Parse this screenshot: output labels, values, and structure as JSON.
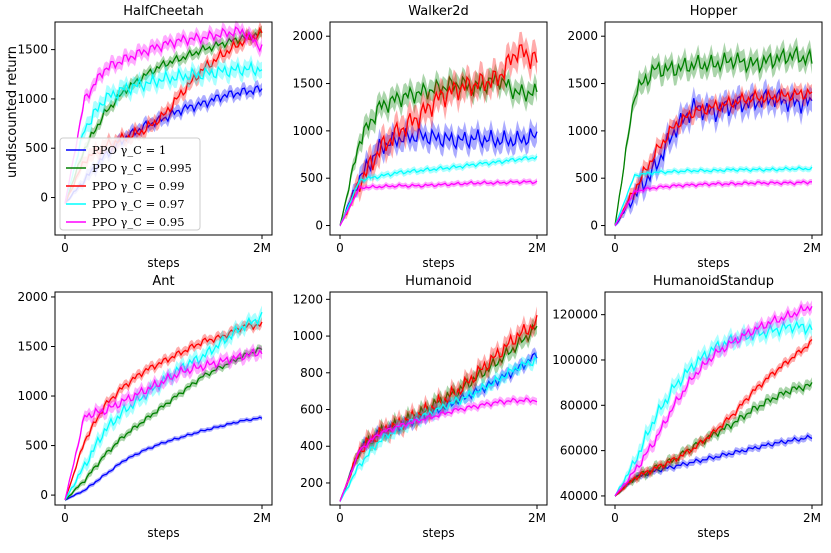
{
  "figure": {
    "ylabel": "undiscounted return"
  },
  "legend": {
    "entries": [
      {
        "label": "PPO γ_C = 1",
        "color": "#0000ff"
      },
      {
        "label": "PPO γ_C = 0.995",
        "color": "#008000"
      },
      {
        "label": "PPO γ_C = 0.99",
        "color": "#ff0000"
      },
      {
        "label": "PPO γ_C = 0.97",
        "color": "#00ffff"
      },
      {
        "label": "PPO γ_C = 0.95",
        "color": "#ff00ff"
      }
    ]
  },
  "chart_data": [
    {
      "type": "line",
      "title": "HalfCheetah",
      "xlabel": "steps",
      "x": [
        0,
        0.1,
        0.2,
        0.3,
        0.4,
        0.5,
        0.6,
        0.7,
        0.8,
        0.9,
        1.0
      ],
      "xticks": [
        {
          "v": 0,
          "label": "0"
        },
        {
          "v": 1,
          "label": "2M"
        }
      ],
      "ylim": [
        -380,
        1780
      ],
      "yticks": [
        {
          "v": 0,
          "label": "0"
        },
        {
          "v": 500,
          "label": "500"
        },
        {
          "v": 1000,
          "label": "1000"
        },
        {
          "v": 1500,
          "label": "1500"
        }
      ],
      "series": [
        {
          "name": "PPO γ_C = 1",
          "color": "#0000ff",
          "noise": 35,
          "values": [
            -60,
            180,
            420,
            600,
            720,
            800,
            900,
            950,
            1030,
            1070,
            1100
          ]
        },
        {
          "name": "PPO γ_C = 0.995",
          "color": "#008000",
          "noise": 30,
          "values": [
            -60,
            500,
            850,
            1080,
            1230,
            1350,
            1420,
            1500,
            1560,
            1620,
            1660
          ]
        },
        {
          "name": "PPO γ_C = 0.99",
          "color": "#ff0000",
          "noise": 40,
          "values": [
            -60,
            380,
            520,
            600,
            680,
            830,
            1080,
            1300,
            1450,
            1580,
            1670
          ]
        },
        {
          "name": "PPO γ_C = 0.97",
          "color": "#00ffff",
          "noise": 50,
          "values": [
            -60,
            700,
            1000,
            1100,
            1150,
            1200,
            1230,
            1250,
            1280,
            1300,
            1300
          ]
        },
        {
          "name": "PPO γ_C = 0.95",
          "color": "#ff00ff",
          "noise": 40,
          "values": [
            -60,
            1000,
            1300,
            1400,
            1480,
            1550,
            1600,
            1620,
            1660,
            1690,
            1520
          ]
        }
      ]
    },
    {
      "type": "line",
      "title": "Walker2d",
      "xlabel": "steps",
      "x": [
        0,
        0.1,
        0.2,
        0.3,
        0.4,
        0.5,
        0.6,
        0.7,
        0.8,
        0.9,
        1.0
      ],
      "xticks": [
        {
          "v": 0,
          "label": "0"
        },
        {
          "v": 1,
          "label": "2M"
        }
      ],
      "ylim": [
        -100,
        2150
      ],
      "yticks": [
        {
          "v": 0,
          "label": "0"
        },
        {
          "v": 500,
          "label": "500"
        },
        {
          "v": 1000,
          "label": "1000"
        },
        {
          "v": 1500,
          "label": "1500"
        },
        {
          "v": 2000,
          "label": "2000"
        }
      ],
      "series": [
        {
          "name": "PPO γ_C = 1",
          "color": "#0000ff",
          "noise": 70,
          "values": [
            0,
            500,
            820,
            920,
            950,
            920,
            900,
            920,
            900,
            900,
            950
          ]
        },
        {
          "name": "PPO γ_C = 0.995",
          "color": "#008000",
          "noise": 70,
          "values": [
            0,
            900,
            1250,
            1350,
            1400,
            1450,
            1500,
            1450,
            1550,
            1400,
            1400
          ]
        },
        {
          "name": "PPO γ_C = 0.99",
          "color": "#ff0000",
          "noise": 90,
          "values": [
            0,
            450,
            800,
            1000,
            1150,
            1350,
            1450,
            1500,
            1550,
            1850,
            1750
          ]
        },
        {
          "name": "PPO γ_C = 0.97",
          "color": "#00ffff",
          "noise": 15,
          "values": [
            0,
            480,
            520,
            560,
            580,
            600,
            620,
            650,
            670,
            700,
            720
          ]
        },
        {
          "name": "PPO γ_C = 0.95",
          "color": "#ff00ff",
          "noise": 12,
          "values": [
            0,
            400,
            410,
            420,
            420,
            430,
            440,
            450,
            450,
            460,
            460
          ]
        }
      ]
    },
    {
      "type": "line",
      "title": "Hopper",
      "xlabel": "steps",
      "x": [
        0,
        0.1,
        0.2,
        0.3,
        0.4,
        0.5,
        0.6,
        0.7,
        0.8,
        0.9,
        1.0
      ],
      "xticks": [
        {
          "v": 0,
          "label": "0"
        },
        {
          "v": 1,
          "label": "2M"
        }
      ],
      "ylim": [
        -100,
        2150
      ],
      "yticks": [
        {
          "v": 0,
          "label": "0"
        },
        {
          "v": 500,
          "label": "500"
        },
        {
          "v": 1000,
          "label": "1000"
        },
        {
          "v": 1500,
          "label": "1500"
        },
        {
          "v": 2000,
          "label": "2000"
        }
      ],
      "series": [
        {
          "name": "PPO γ_C = 1",
          "color": "#0000ff",
          "noise": 80,
          "values": [
            0,
            320,
            600,
            1000,
            1250,
            1200,
            1280,
            1300,
            1350,
            1300,
            1300
          ]
        },
        {
          "name": "PPO γ_C = 0.995",
          "color": "#008000",
          "noise": 70,
          "values": [
            0,
            1400,
            1650,
            1650,
            1700,
            1700,
            1750,
            1700,
            1750,
            1800,
            1750
          ]
        },
        {
          "name": "PPO γ_C = 0.99",
          "color": "#ff0000",
          "noise": 50,
          "values": [
            0,
            380,
            750,
            1050,
            1200,
            1250,
            1300,
            1350,
            1350,
            1380,
            1400
          ]
        },
        {
          "name": "PPO γ_C = 0.97",
          "color": "#00ffff",
          "noise": 12,
          "values": [
            0,
            530,
            560,
            570,
            580,
            580,
            590,
            590,
            590,
            600,
            600
          ]
        },
        {
          "name": "PPO γ_C = 0.95",
          "color": "#ff00ff",
          "noise": 12,
          "values": [
            0,
            360,
            400,
            420,
            430,
            440,
            440,
            450,
            450,
            450,
            460
          ]
        }
      ]
    },
    {
      "type": "line",
      "title": "Ant",
      "xlabel": "steps",
      "x": [
        0,
        0.1,
        0.2,
        0.3,
        0.4,
        0.5,
        0.6,
        0.7,
        0.8,
        0.9,
        1.0
      ],
      "xticks": [
        {
          "v": 0,
          "label": "0"
        },
        {
          "v": 1,
          "label": "2M"
        }
      ],
      "ylim": [
        -100,
        2050
      ],
      "yticks": [
        {
          "v": 0,
          "label": "0"
        },
        {
          "v": 500,
          "label": "500"
        },
        {
          "v": 1000,
          "label": "1000"
        },
        {
          "v": 1500,
          "label": "1500"
        },
        {
          "v": 2000,
          "label": "2000"
        }
      ],
      "series": [
        {
          "name": "PPO γ_C = 1",
          "color": "#0000ff",
          "noise": 8,
          "values": [
            -50,
            50,
            200,
            350,
            450,
            530,
            590,
            650,
            700,
            750,
            780
          ]
        },
        {
          "name": "PPO γ_C = 0.995",
          "color": "#008000",
          "noise": 18,
          "values": [
            -50,
            150,
            400,
            600,
            750,
            900,
            1050,
            1200,
            1300,
            1400,
            1480
          ]
        },
        {
          "name": "PPO γ_C = 0.99",
          "color": "#ff0000",
          "noise": 25,
          "values": [
            -50,
            550,
            900,
            1100,
            1250,
            1350,
            1450,
            1550,
            1600,
            1700,
            1720
          ]
        },
        {
          "name": "PPO γ_C = 0.97",
          "color": "#00ffff",
          "noise": 40,
          "values": [
            -50,
            300,
            650,
            850,
            1000,
            1150,
            1300,
            1400,
            1550,
            1700,
            1800
          ]
        },
        {
          "name": "PPO γ_C = 0.95",
          "color": "#ff00ff",
          "noise": 35,
          "values": [
            -50,
            800,
            850,
            950,
            1050,
            1150,
            1250,
            1300,
            1350,
            1400,
            1450
          ]
        }
      ]
    },
    {
      "type": "line",
      "title": "Humanoid",
      "xlabel": "steps",
      "x": [
        0,
        0.1,
        0.2,
        0.3,
        0.4,
        0.5,
        0.6,
        0.7,
        0.8,
        0.9,
        1.0
      ],
      "xticks": [
        {
          "v": 0,
          "label": "0"
        },
        {
          "v": 1,
          "label": "2M"
        }
      ],
      "ylim": [
        80,
        1240
      ],
      "yticks": [
        {
          "v": 200,
          "label": "200"
        },
        {
          "v": 400,
          "label": "400"
        },
        {
          "v": 600,
          "label": "600"
        },
        {
          "v": 800,
          "label": "800"
        },
        {
          "v": 1000,
          "label": "1000"
        },
        {
          "v": 1200,
          "label": "1200"
        }
      ],
      "series": [
        {
          "name": "PPO γ_C = 1",
          "color": "#0000ff",
          "noise": 18,
          "values": [
            100,
            380,
            470,
            510,
            550,
            600,
            650,
            700,
            760,
            820,
            900
          ]
        },
        {
          "name": "PPO γ_C = 0.995",
          "color": "#008000",
          "noise": 25,
          "values": [
            100,
            380,
            470,
            520,
            570,
            640,
            700,
            780,
            860,
            950,
            1050
          ]
        },
        {
          "name": "PPO γ_C = 0.99",
          "color": "#ff0000",
          "noise": 30,
          "values": [
            100,
            380,
            470,
            520,
            570,
            630,
            700,
            800,
            900,
            1000,
            1070
          ]
        },
        {
          "name": "PPO γ_C = 0.97",
          "color": "#00ffff",
          "noise": 18,
          "values": [
            100,
            300,
            430,
            500,
            550,
            600,
            650,
            700,
            760,
            830,
            870
          ]
        },
        {
          "name": "PPO γ_C = 0.95",
          "color": "#ff00ff",
          "noise": 10,
          "values": [
            100,
            380,
            470,
            510,
            540,
            570,
            600,
            620,
            640,
            650,
            650
          ]
        }
      ]
    },
    {
      "type": "line",
      "title": "HumanoidStandup",
      "xlabel": "steps",
      "x": [
        0,
        0.1,
        0.2,
        0.3,
        0.4,
        0.5,
        0.6,
        0.7,
        0.8,
        0.9,
        1.0
      ],
      "xticks": [
        {
          "v": 0,
          "label": "0"
        },
        {
          "v": 1,
          "label": "2M"
        }
      ],
      "ylim": [
        36000,
        130000
      ],
      "yticks": [
        {
          "v": 40000,
          "label": "40000"
        },
        {
          "v": 60000,
          "label": "60000"
        },
        {
          "v": 80000,
          "label": "80000"
        },
        {
          "v": 100000,
          "label": "100000"
        },
        {
          "v": 120000,
          "label": "120000"
        }
      ],
      "series": [
        {
          "name": "PPO γ_C = 1",
          "color": "#0000ff",
          "noise": 700,
          "values": [
            40000,
            48000,
            51000,
            53000,
            55000,
            57000,
            59000,
            61000,
            63000,
            64500,
            66000
          ]
        },
        {
          "name": "PPO γ_C = 0.995",
          "color": "#008000",
          "noise": 1200,
          "values": [
            40000,
            48000,
            52000,
            56000,
            62000,
            67000,
            72000,
            78000,
            83000,
            87000,
            89000
          ]
        },
        {
          "name": "PPO γ_C = 0.99",
          "color": "#ff0000",
          "noise": 1000,
          "values": [
            40000,
            48000,
            52000,
            56000,
            61000,
            68000,
            76000,
            86000,
            94000,
            101000,
            108000
          ]
        },
        {
          "name": "PPO γ_C = 0.97",
          "color": "#00ffff",
          "noise": 2000,
          "values": [
            40000,
            55000,
            74000,
            88000,
            98000,
            105000,
            109000,
            111000,
            113000,
            115000,
            114000
          ]
        },
        {
          "name": "PPO γ_C = 0.95",
          "color": "#ff00ff",
          "noise": 1500,
          "values": [
            40000,
            51000,
            64000,
            80000,
            93000,
            102000,
            108000,
            113000,
            117000,
            120000,
            124000
          ]
        }
      ]
    }
  ]
}
